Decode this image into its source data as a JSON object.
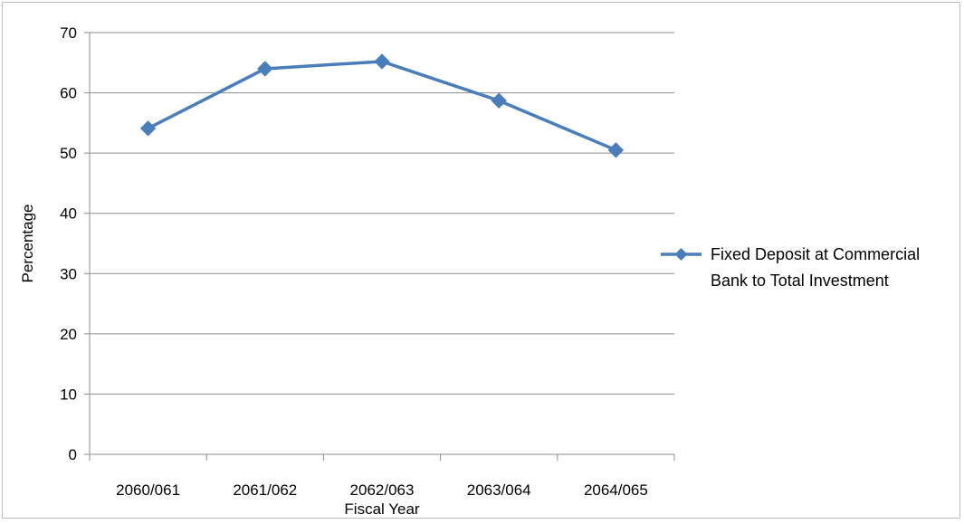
{
  "chart_data": {
    "type": "line",
    "categories": [
      "2060/061",
      "2061/062",
      "2062/063",
      "2063/064",
      "2064/065"
    ],
    "series": [
      {
        "name": "Fixed Deposit at Commercial Bank to Total Investment",
        "values": [
          54.1,
          64.0,
          65.2,
          58.7,
          50.5
        ],
        "color": "#4a7ebb",
        "marker": "diamond"
      }
    ],
    "title": "",
    "xlabel": "Fiscal Year",
    "ylabel": "Percentage",
    "ylim": [
      0,
      70
    ],
    "yticks": [
      "0",
      "10",
      "20",
      "30",
      "40",
      "50",
      "60",
      "70"
    ],
    "grid": true,
    "legend_position": "right",
    "legend_lines": [
      "Fixed Deposit at Commercial",
      "Bank to Total Investment"
    ]
  }
}
